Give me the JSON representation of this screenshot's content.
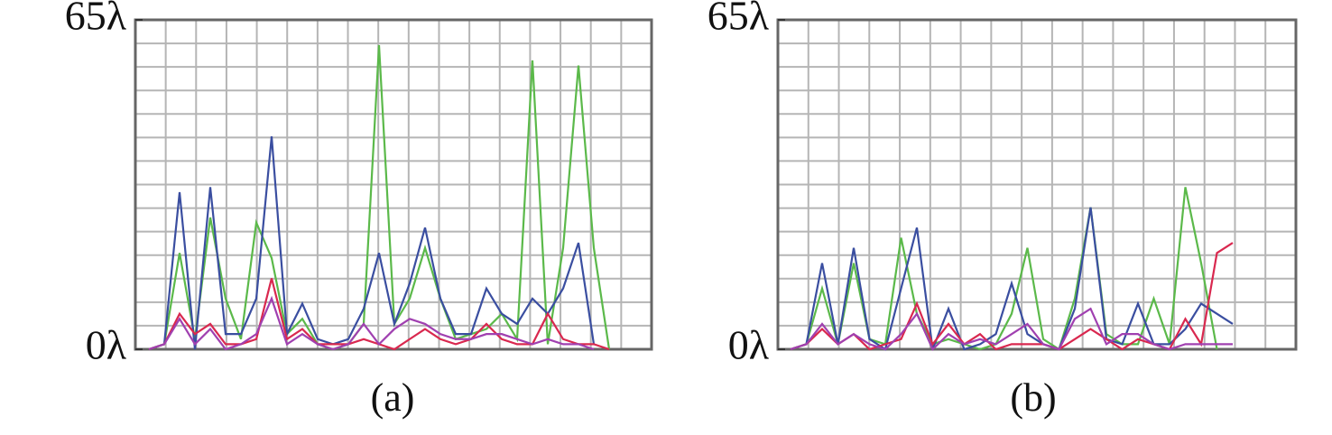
{
  "chart_data": [
    {
      "type": "line",
      "caption": "(a)",
      "categories": [
        null,
        null,
        null,
        null,
        null,
        null,
        null,
        null,
        null,
        null,
        null,
        null,
        null,
        null,
        null,
        null,
        null,
        null,
        null,
        null,
        null,
        null,
        null,
        null,
        null,
        null,
        null,
        null,
        null,
        null,
        null
      ],
      "ylim": [
        0,
        65
      ],
      "yticks": [
        {
          "value": 0,
          "label": "0λ"
        },
        {
          "value": 65,
          "label": "65λ"
        }
      ],
      "grid": true,
      "series": [
        {
          "color": "#5bb94a",
          "values": [
            0,
            1,
            19,
            2,
            26,
            10,
            2,
            25,
            18,
            3,
            6,
            1,
            0,
            1,
            5,
            60,
            5,
            10,
            20,
            10,
            2,
            3,
            4,
            7,
            2,
            57,
            1,
            20,
            56,
            20,
            0
          ]
        },
        {
          "color": "#3a4ea0",
          "values": [
            0,
            1,
            31,
            0,
            32,
            3,
            3,
            10,
            42,
            3,
            9,
            2,
            1,
            2,
            8,
            19,
            5,
            13,
            24,
            10,
            3,
            3,
            12,
            7,
            5,
            10,
            7,
            12,
            21,
            1,
            null
          ]
        },
        {
          "color": "#d9284f",
          "values": [
            0,
            1,
            7,
            3,
            5,
            1,
            1,
            2,
            14,
            2,
            4,
            1,
            1,
            1,
            2,
            1,
            0,
            2,
            4,
            2,
            1,
            2,
            5,
            2,
            1,
            1,
            7,
            2,
            1,
            1,
            0
          ]
        },
        {
          "color": "#a040b0",
          "values": [
            0,
            1,
            6,
            1,
            4,
            0,
            1,
            3,
            10,
            1,
            3,
            1,
            0,
            1,
            5,
            1,
            4,
            6,
            5,
            3,
            2,
            2,
            3,
            3,
            2,
            1,
            2,
            1,
            1,
            0,
            null
          ]
        }
      ]
    },
    {
      "type": "line",
      "caption": "(b)",
      "categories": [
        null,
        null,
        null,
        null,
        null,
        null,
        null,
        null,
        null,
        null,
        null,
        null,
        null,
        null,
        null,
        null,
        null,
        null,
        null,
        null,
        null,
        null,
        null,
        null,
        null,
        null,
        null,
        null,
        null
      ],
      "ylim": [
        0,
        65
      ],
      "yticks": [
        {
          "value": 0,
          "label": "0λ"
        },
        {
          "value": 65,
          "label": "65λ"
        }
      ],
      "grid": true,
      "series": [
        {
          "color": "#5bb94a",
          "values": [
            0,
            1,
            12,
            1,
            17,
            2,
            1,
            22,
            7,
            1,
            2,
            1,
            0,
            1,
            7,
            20,
            2,
            0,
            10,
            28,
            3,
            1,
            1,
            10,
            1,
            32,
            17,
            0,
            null
          ]
        },
        {
          "color": "#3a4ea0",
          "values": [
            0,
            1,
            17,
            1,
            20,
            2,
            0,
            12,
            24,
            0,
            8,
            0,
            1,
            3,
            13,
            3,
            1,
            0,
            8,
            28,
            2,
            1,
            9,
            1,
            1,
            4,
            9,
            7,
            5
          ]
        },
        {
          "color": "#d9284f",
          "values": [
            0,
            1,
            4,
            1,
            3,
            0,
            1,
            2,
            9,
            1,
            5,
            1,
            3,
            0,
            1,
            1,
            1,
            0,
            2,
            4,
            2,
            0,
            2,
            1,
            0,
            6,
            1,
            19,
            21
          ]
        },
        {
          "color": "#a040b0",
          "values": [
            0,
            1,
            5,
            1,
            3,
            1,
            0,
            3,
            7,
            0,
            3,
            1,
            2,
            1,
            3,
            5,
            1,
            0,
            6,
            8,
            1,
            3,
            3,
            1,
            0,
            1,
            1,
            1,
            1
          ]
        }
      ]
    }
  ]
}
